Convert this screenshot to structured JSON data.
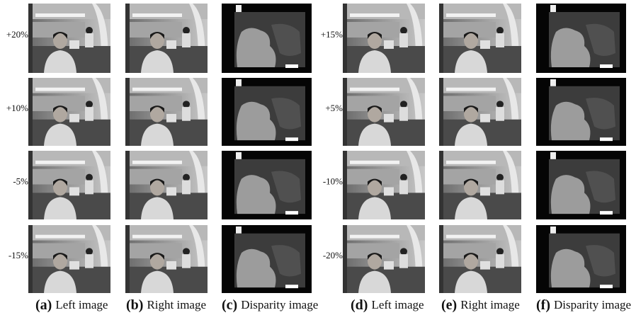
{
  "left_group": {
    "row_labels": [
      "+20%",
      "+10%",
      "-5%",
      "-15%"
    ]
  },
  "right_group": {
    "row_labels": [
      "+15%",
      "+5%",
      "-10%",
      "-20%"
    ]
  },
  "captions": [
    {
      "letter": "(a)",
      "text": "Left image"
    },
    {
      "letter": "(b)",
      "text": "Right image"
    },
    {
      "letter": "(c)",
      "text": "Disparity image"
    },
    {
      "letter": "(d)",
      "text": "Left image"
    },
    {
      "letter": "(e)",
      "text": "Right image"
    },
    {
      "letter": "(f)",
      "text": "Disparity image"
    }
  ]
}
